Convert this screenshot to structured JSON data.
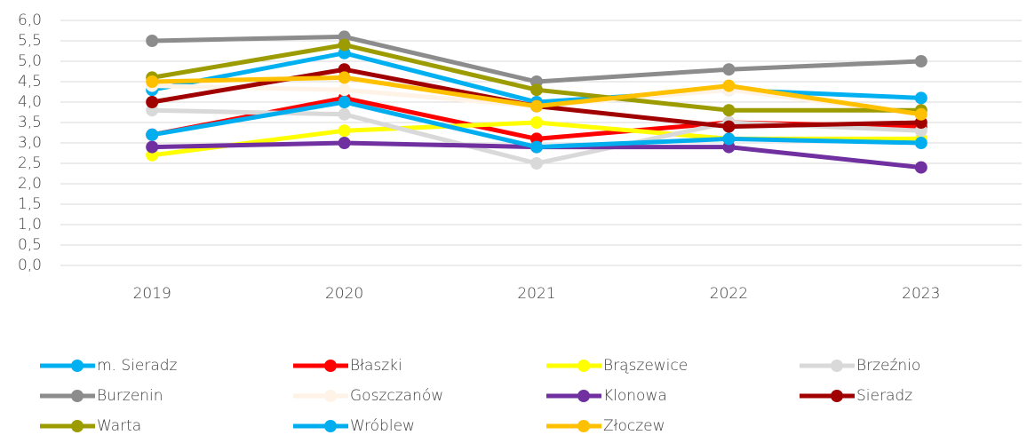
{
  "chart_data": {
    "type": "line",
    "categories": [
      "2019",
      "2020",
      "2021",
      "2022",
      "2023"
    ],
    "ylim": [
      0,
      6
    ],
    "yticks": [
      {
        "value": 0,
        "label": "0,0"
      },
      {
        "value": 0.5,
        "label": "0,5"
      },
      {
        "value": 1,
        "label": "1,0"
      },
      {
        "value": 1.5,
        "label": "1,5"
      },
      {
        "value": 2,
        "label": "2,0"
      },
      {
        "value": 2.5,
        "label": "2,5"
      },
      {
        "value": 3,
        "label": "3,0"
      },
      {
        "value": 3.5,
        "label": "3,5"
      },
      {
        "value": 4,
        "label": "4,0"
      },
      {
        "value": 4.5,
        "label": "4,5"
      },
      {
        "value": 5,
        "label": "5,0"
      },
      {
        "value": 5.5,
        "label": "5,5"
      },
      {
        "value": 6,
        "label": "6,0"
      }
    ],
    "grid": true,
    "legend": "bottom",
    "series": [
      {
        "name": "m. Sieradz",
        "color": "#00b0f0",
        "values": [
          4.3,
          5.2,
          4.0,
          4.3,
          4.1
        ]
      },
      {
        "name": "Błaszki",
        "color": "#ff0000",
        "values": [
          3.2,
          4.1,
          3.1,
          3.5,
          3.4
        ]
      },
      {
        "name": "Brąszewice",
        "color": "#ffff00",
        "values": [
          2.7,
          3.3,
          3.5,
          3.1,
          3.1
        ]
      },
      {
        "name": "Brzeźnio",
        "color": "#d9d9d9",
        "values": [
          3.8,
          3.7,
          2.5,
          3.5,
          3.3
        ]
      },
      {
        "name": "Burzenin",
        "color": "#8c8c8c",
        "values": [
          5.5,
          5.6,
          4.5,
          4.8,
          5.0
        ]
      },
      {
        "name": "Goszczanów",
        "color": "#fff2e6",
        "values": [
          4.4,
          4.3,
          3.9,
          4.3,
          3.7
        ]
      },
      {
        "name": "Klonowa",
        "color": "#7030a0",
        "values": [
          2.9,
          3.0,
          2.9,
          2.9,
          2.4
        ]
      },
      {
        "name": "Sieradz",
        "color": "#a00000",
        "values": [
          4.0,
          4.8,
          3.9,
          3.4,
          3.5
        ]
      },
      {
        "name": "Warta",
        "color": "#9c9c00",
        "values": [
          4.6,
          5.4,
          4.3,
          3.8,
          3.8
        ]
      },
      {
        "name": "Wróblew",
        "color": "#00aeef",
        "values": [
          3.2,
          4.0,
          2.9,
          3.1,
          3.0
        ]
      },
      {
        "name": "Złoczew",
        "color": "#ffc000",
        "values": [
          4.5,
          4.6,
          3.9,
          4.4,
          3.7
        ]
      }
    ]
  }
}
